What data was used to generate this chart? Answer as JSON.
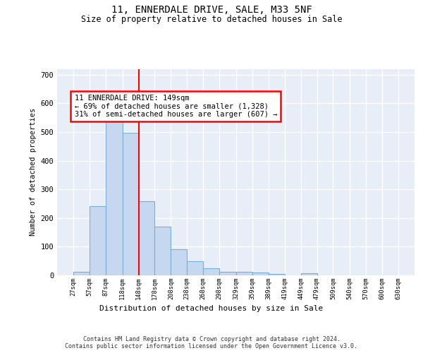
{
  "title_line1": "11, ENNERDALE DRIVE, SALE, M33 5NF",
  "title_line2": "Size of property relative to detached houses in Sale",
  "xlabel": "Distribution of detached houses by size in Sale",
  "ylabel": "Number of detached properties",
  "bin_edges": [
    27,
    57,
    87,
    118,
    148,
    178,
    208,
    238,
    268,
    298,
    329,
    359,
    389,
    419,
    449,
    479,
    509,
    540,
    570,
    600,
    630
  ],
  "bar_heights": [
    13,
    242,
    578,
    497,
    258,
    170,
    92,
    49,
    24,
    13,
    12,
    9,
    6,
    0,
    7,
    0,
    0,
    0,
    0,
    0
  ],
  "bar_color": "#c5d8f0",
  "bar_edgecolor": "#7aafd4",
  "vline_x": 148,
  "vline_color": "red",
  "annotation_text": "11 ENNERDALE DRIVE: 149sqm\n← 69% of detached houses are smaller (1,328)\n31% of semi-detached houses are larger (607) →",
  "annotation_box_color": "white",
  "annotation_box_edgecolor": "red",
  "ylim": [
    0,
    720
  ],
  "yticks": [
    0,
    100,
    200,
    300,
    400,
    500,
    600,
    700
  ],
  "footer_text": "Contains HM Land Registry data © Crown copyright and database right 2024.\nContains public sector information licensed under the Open Government Licence v3.0.",
  "bg_color": "#e8eef8",
  "grid_color": "white",
  "font_family": "DejaVu Sans Mono"
}
